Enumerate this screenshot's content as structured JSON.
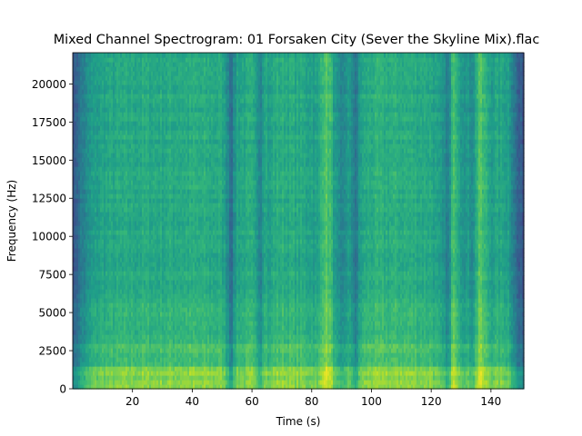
{
  "chart_data": {
    "type": "heatmap",
    "title": "Mixed Channel Spectrogram: 01 Forsaken City (Sever the Skyline Mix).flac",
    "xlabel": "Time (s)",
    "ylabel": "Frequency (Hz)",
    "xlim": [
      0,
      151
    ],
    "ylim": [
      0,
      22050
    ],
    "xticks": [
      20,
      40,
      60,
      80,
      100,
      120,
      140
    ],
    "yticks": [
      0,
      2500,
      5000,
      7500,
      10000,
      12500,
      15000,
      17500,
      20000
    ],
    "colormap": "viridis",
    "grid": false,
    "legend": "none",
    "intensity_profile": {
      "time_s": [
        0,
        1,
        2,
        4,
        6,
        10,
        20,
        30,
        40,
        50,
        52,
        53,
        54,
        55,
        60,
        62,
        63,
        64,
        66,
        67,
        70,
        75,
        80,
        82,
        84,
        86,
        88,
        90,
        92,
        94,
        95,
        96,
        98,
        100,
        110,
        120,
        124,
        126,
        127,
        128,
        130,
        132,
        134,
        135,
        136,
        138,
        140,
        142,
        144,
        146,
        148,
        149,
        150,
        151
      ],
      "relative_level": [
        0.3,
        0.28,
        0.38,
        0.45,
        0.52,
        0.58,
        0.6,
        0.6,
        0.61,
        0.6,
        0.48,
        0.35,
        0.47,
        0.58,
        0.6,
        0.52,
        0.46,
        0.62,
        0.54,
        0.6,
        0.62,
        0.6,
        0.58,
        0.55,
        0.72,
        0.7,
        0.52,
        0.42,
        0.54,
        0.46,
        0.36,
        0.55,
        0.6,
        0.62,
        0.62,
        0.6,
        0.5,
        0.42,
        0.66,
        0.7,
        0.56,
        0.52,
        0.5,
        0.6,
        0.74,
        0.64,
        0.56,
        0.58,
        0.58,
        0.56,
        0.4,
        0.3,
        0.28,
        0.28
      ]
    }
  }
}
